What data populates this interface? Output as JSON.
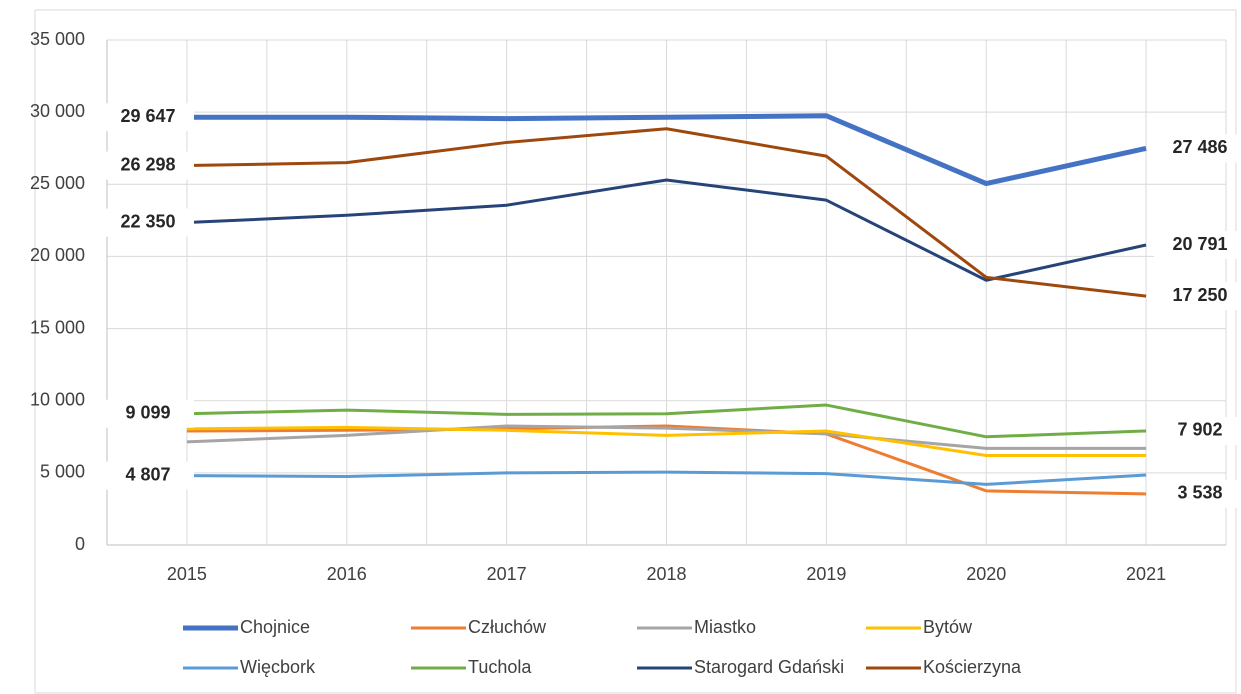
{
  "chart_data": {
    "type": "line",
    "categories": [
      "2015",
      "2016",
      "2017",
      "2018",
      "2019",
      "2020",
      "2021"
    ],
    "series": [
      {
        "name": "Chojnice",
        "color": "#4472c4",
        "values": [
          29647,
          29650,
          29550,
          29650,
          29750,
          25050,
          27486
        ],
        "value_labels": [
          "29 647",
          null,
          null,
          null,
          null,
          null,
          "27 486"
        ]
      },
      {
        "name": "Człuchów",
        "color": "#ed7d31",
        "values": [
          7900,
          7950,
          8050,
          8250,
          7700,
          3750,
          3538
        ],
        "value_labels": [
          null,
          null,
          null,
          null,
          null,
          null,
          "3 538"
        ]
      },
      {
        "name": "Miastko",
        "color": "#a5a5a5",
        "values": [
          7150,
          7600,
          8250,
          8100,
          7700,
          6700,
          6700
        ]
      },
      {
        "name": "Bytów",
        "color": "#ffc000",
        "values": [
          8050,
          8150,
          7950,
          7600,
          7900,
          6200,
          6200
        ]
      },
      {
        "name": "Więcbork",
        "color": "#5b9bd5",
        "values": [
          4807,
          4750,
          5000,
          5050,
          4950,
          4200,
          4850
        ],
        "value_labels": [
          "4 807",
          null,
          null,
          null,
          null,
          null,
          null
        ]
      },
      {
        "name": "Tuchola",
        "color": "#70ad47",
        "values": [
          9099,
          9350,
          9050,
          9100,
          9700,
          7500,
          7902
        ],
        "value_labels": [
          "9 099",
          null,
          null,
          null,
          null,
          null,
          "7 902"
        ]
      },
      {
        "name": "Starogard Gdański",
        "color": "#264478",
        "values": [
          22350,
          22850,
          23550,
          25300,
          23900,
          18350,
          20791
        ],
        "value_labels": [
          "22 350",
          null,
          null,
          null,
          null,
          null,
          "20 791"
        ]
      },
      {
        "name": "Kościerzyna",
        "color": "#9e480e",
        "values": [
          26298,
          26500,
          27900,
          28850,
          26950,
          18550,
          17250
        ],
        "value_labels": [
          "26 298",
          null,
          null,
          null,
          null,
          null,
          "17 250"
        ]
      }
    ],
    "ylim": [
      0,
      35000
    ],
    "yticks": [
      0,
      {
        "value": 5000,
        "label": "5 000"
      },
      {
        "value": 10000,
        "label": "10 000"
      },
      {
        "value": 15000,
        "label": "15 000"
      },
      {
        "value": 20000,
        "label": "20 000"
      },
      {
        "value": 25000,
        "label": "25 000"
      },
      {
        "value": 30000,
        "label": "30 000"
      },
      {
        "value": 35000,
        "label": "35 000"
      }
    ],
    "grid": true,
    "legend": "bottom"
  }
}
